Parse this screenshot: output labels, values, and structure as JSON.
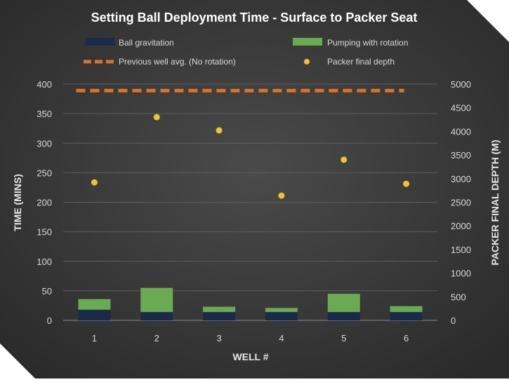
{
  "chart_data": {
    "type": "bar",
    "title": "Setting Ball Deployment Time - Surface to Packer Seat",
    "xlabel": "WELL #",
    "ylabel": "TIME (MINS)",
    "y2label": "PACKER FINAL DEPTH (M)",
    "categories": [
      "1",
      "2",
      "3",
      "4",
      "5",
      "6"
    ],
    "ylim": [
      0,
      400
    ],
    "yticks": [
      0,
      50,
      100,
      150,
      200,
      250,
      300,
      350,
      400
    ],
    "y2lim": [
      0,
      5000
    ],
    "y2ticks": [
      0,
      500,
      1000,
      1500,
      2000,
      2500,
      3000,
      3500,
      4000,
      4500,
      5000
    ],
    "grid": true,
    "legend_position": "top",
    "series": [
      {
        "name": "Ball gravitation",
        "kind": "stacked-bar",
        "axis": "left",
        "color": "#1b2a4a",
        "values": [
          18,
          14,
          14,
          14,
          14,
          14
        ]
      },
      {
        "name": "Pumping with rotation",
        "kind": "stacked-bar",
        "axis": "left",
        "color": "#6aaa52",
        "values": [
          18,
          41,
          9,
          7,
          31,
          10
        ]
      },
      {
        "name": "Previous well avg. (No rotation)",
        "kind": "dashed-line",
        "axis": "left",
        "color": "#d9742b",
        "values": [
          389,
          389,
          389,
          389,
          389,
          389
        ]
      },
      {
        "name": "Packer final depth",
        "kind": "scatter",
        "axis": "right",
        "color": "#f2c12e",
        "values": [
          2920,
          4300,
          4020,
          2640,
          3400,
          2890
        ]
      }
    ]
  }
}
